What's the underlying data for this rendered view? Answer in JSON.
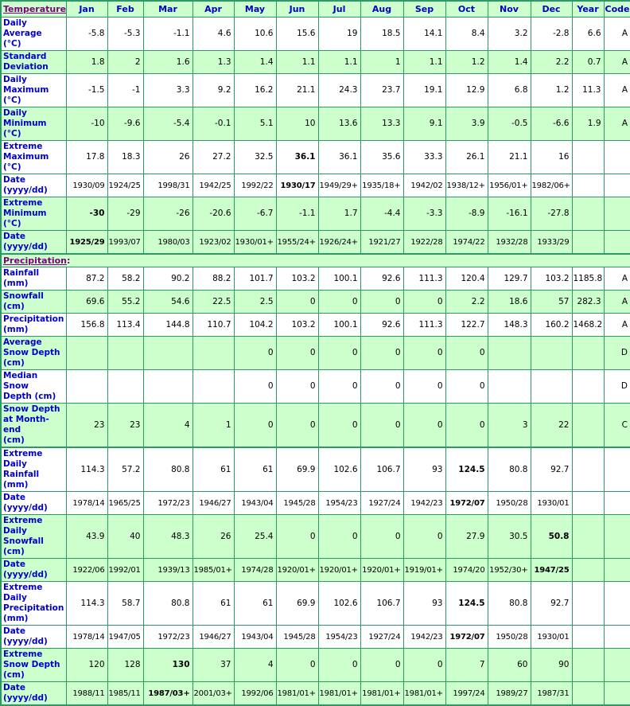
{
  "colors": {
    "border_green": "#2E9966",
    "cell_green": "#CCFFCC",
    "label_blue": "#0000CC",
    "section_purple": "#800080",
    "value_black": "#000000"
  },
  "table": {
    "temperature_section_label": "Temperature:",
    "months": [
      "Jan",
      "Feb",
      "Mar",
      "Apr",
      "May",
      "Jun",
      "Jul",
      "Aug",
      "Sep",
      "Oct",
      "Nov",
      "Dec"
    ],
    "year_label": "Year",
    "code_label": "Code",
    "rows": [
      {
        "label": "Daily Average\n(°C)",
        "values": [
          "-5.8",
          "-5.3",
          "-1.1",
          "4.6",
          "10.6",
          "15.6",
          "19",
          "18.5",
          "14.1",
          "8.4",
          "3.2",
          "-2.8"
        ],
        "year": "6.6",
        "code": "A",
        "shade": false,
        "bold": []
      },
      {
        "label": "Standard\nDeviation",
        "values": [
          "1.8",
          "2",
          "1.6",
          "1.3",
          "1.4",
          "1.1",
          "1.1",
          "1",
          "1.1",
          "1.2",
          "1.4",
          "2.2"
        ],
        "year": "0.7",
        "code": "A",
        "shade": true,
        "bold": []
      },
      {
        "label": "Daily\nMaximum\n(°C)",
        "values": [
          "-1.5",
          "-1",
          "3.3",
          "9.2",
          "16.2",
          "21.1",
          "24.3",
          "23.7",
          "19.1",
          "12.9",
          "6.8",
          "1.2"
        ],
        "year": "11.3",
        "code": "A",
        "shade": false,
        "bold": []
      },
      {
        "label": "Daily\nMinimum\n(°C)",
        "values": [
          "-10",
          "-9.6",
          "-5.4",
          "-0.1",
          "5.1",
          "10",
          "13.6",
          "13.3",
          "9.1",
          "3.9",
          "-0.5",
          "-6.6"
        ],
        "year": "1.9",
        "code": "A",
        "shade": true,
        "bold": []
      },
      {
        "label": "Extreme\nMaximum\n(°C)",
        "values": [
          "17.8",
          "18.3",
          "26",
          "27.2",
          "32.5",
          "36.1",
          "36.1",
          "35.6",
          "33.3",
          "26.1",
          "21.1",
          "16"
        ],
        "year": "",
        "code": "",
        "shade": false,
        "bold": [
          5
        ]
      },
      {
        "label": "Date\n(yyyy/dd)",
        "date_row": true,
        "values": [
          "1930/09",
          "1924/25",
          "1998/31",
          "1942/25",
          "1992/22",
          "1930/17",
          "1949/29+",
          "1935/18+",
          "1942/02",
          "1938/12+",
          "1956/01+",
          "1982/06+"
        ],
        "year": "",
        "code": "",
        "shade": false,
        "bold": [
          5
        ]
      },
      {
        "label": "Extreme\nMinimum\n(°C)",
        "values": [
          "-30",
          "-29",
          "-26",
          "-20.6",
          "-6.7",
          "-1.1",
          "1.7",
          "-4.4",
          "-3.3",
          "-8.9",
          "-16.1",
          "-27.8"
        ],
        "year": "",
        "code": "",
        "shade": true,
        "bold": [
          0
        ]
      },
      {
        "label": "Date\n(yyyy/dd)",
        "date_row": true,
        "values": [
          "1925/29",
          "1993/07",
          "1980/03",
          "1923/02",
          "1930/01+",
          "1955/24+",
          "1926/24+",
          "1921/27",
          "1922/28",
          "1974/22",
          "1932/28",
          "1933/29"
        ],
        "year": "",
        "code": "",
        "shade": true,
        "bold": [
          0
        ]
      },
      {
        "section": true,
        "label": "Precipitation:",
        "thick_top": true
      },
      {
        "label": "Rainfall (mm)",
        "values": [
          "87.2",
          "58.2",
          "90.2",
          "88.2",
          "101.7",
          "103.2",
          "100.1",
          "92.6",
          "111.3",
          "120.4",
          "129.7",
          "103.2"
        ],
        "year": "1185.8",
        "code": "A",
        "shade": false,
        "bold": []
      },
      {
        "label": "Snowfall\n(cm)",
        "values": [
          "69.6",
          "55.2",
          "54.6",
          "22.5",
          "2.5",
          "0",
          "0",
          "0",
          "0",
          "2.2",
          "18.6",
          "57"
        ],
        "year": "282.3",
        "code": "A",
        "shade": true,
        "bold": []
      },
      {
        "label": "Precipitation\n(mm)",
        "values": [
          "156.8",
          "113.4",
          "144.8",
          "110.7",
          "104.2",
          "103.2",
          "100.1",
          "92.6",
          "111.3",
          "122.7",
          "148.3",
          "160.2"
        ],
        "year": "1468.2",
        "code": "A",
        "shade": false,
        "bold": []
      },
      {
        "label": "Average\nSnow Depth\n(cm)",
        "values": [
          "",
          "",
          "",
          "",
          "0",
          "0",
          "0",
          "0",
          "0",
          "0",
          "",
          ""
        ],
        "year": "",
        "code": "D",
        "shade": true,
        "bold": []
      },
      {
        "label": "Median Snow\nDepth (cm)",
        "values": [
          "",
          "",
          "",
          "",
          "0",
          "0",
          "0",
          "0",
          "0",
          "0",
          "",
          ""
        ],
        "year": "",
        "code": "D",
        "shade": false,
        "bold": []
      },
      {
        "label": "Snow Depth\nat Month-end\n(cm)",
        "values": [
          "23",
          "23",
          "4",
          "1",
          "0",
          "0",
          "0",
          "0",
          "0",
          "0",
          "3",
          "22"
        ],
        "year": "",
        "code": "C",
        "shade": true,
        "bold": []
      },
      {
        "label": "Extreme Daily\nRainfall (mm)",
        "thick_top": true,
        "values": [
          "114.3",
          "57.2",
          "80.8",
          "61",
          "61",
          "69.9",
          "102.6",
          "106.7",
          "93",
          "124.5",
          "80.8",
          "92.7"
        ],
        "year": "",
        "code": "",
        "shade": false,
        "bold": [
          9
        ]
      },
      {
        "label": "Date\n(yyyy/dd)",
        "date_row": true,
        "values": [
          "1978/14",
          "1965/25",
          "1972/23",
          "1946/27",
          "1943/04",
          "1945/28",
          "1954/23",
          "1927/24",
          "1942/23",
          "1972/07",
          "1950/28",
          "1930/01"
        ],
        "year": "",
        "code": "",
        "shade": false,
        "bold": [
          9
        ]
      },
      {
        "label": "Extreme Daily\nSnowfall\n(cm)",
        "values": [
          "43.9",
          "40",
          "48.3",
          "26",
          "25.4",
          "0",
          "0",
          "0",
          "0",
          "27.9",
          "30.5",
          "50.8"
        ],
        "year": "",
        "code": "",
        "shade": true,
        "bold": [
          11
        ]
      },
      {
        "label": "Date\n(yyyy/dd)",
        "date_row": true,
        "values": [
          "1922/06",
          "1992/01",
          "1939/13",
          "1985/01+",
          "1974/28",
          "1920/01+",
          "1920/01+",
          "1920/01+",
          "1919/01+",
          "1974/20",
          "1952/30+",
          "1947/25"
        ],
        "year": "",
        "code": "",
        "shade": true,
        "bold": [
          11
        ]
      },
      {
        "label": "Extreme Daily\nPrecipitation\n(mm)",
        "values": [
          "114.3",
          "58.7",
          "80.8",
          "61",
          "61",
          "69.9",
          "102.6",
          "106.7",
          "93",
          "124.5",
          "80.8",
          "92.7"
        ],
        "year": "",
        "code": "",
        "shade": false,
        "bold": [
          9
        ]
      },
      {
        "label": "Date\n(yyyy/dd)",
        "date_row": true,
        "values": [
          "1978/14",
          "1947/05",
          "1972/23",
          "1946/27",
          "1943/04",
          "1945/28",
          "1954/23",
          "1927/24",
          "1942/23",
          "1972/07",
          "1950/28",
          "1930/01"
        ],
        "year": "",
        "code": "",
        "shade": false,
        "bold": [
          9
        ]
      },
      {
        "label": "Extreme\nSnow Depth\n(cm)",
        "values": [
          "120",
          "128",
          "130",
          "37",
          "4",
          "0",
          "0",
          "0",
          "0",
          "7",
          "60",
          "90"
        ],
        "year": "",
        "code": "",
        "shade": true,
        "bold": [
          2
        ]
      },
      {
        "label": "Date\n(yyyy/dd)",
        "date_row": true,
        "values": [
          "1988/11",
          "1985/11",
          "1987/03+",
          "2001/03+",
          "1992/06",
          "1981/01+",
          "1981/01+",
          "1981/01+",
          "1981/01+",
          "1997/24",
          "1989/27",
          "1987/31"
        ],
        "year": "",
        "code": "",
        "shade": true,
        "bold": [
          2
        ]
      }
    ]
  }
}
